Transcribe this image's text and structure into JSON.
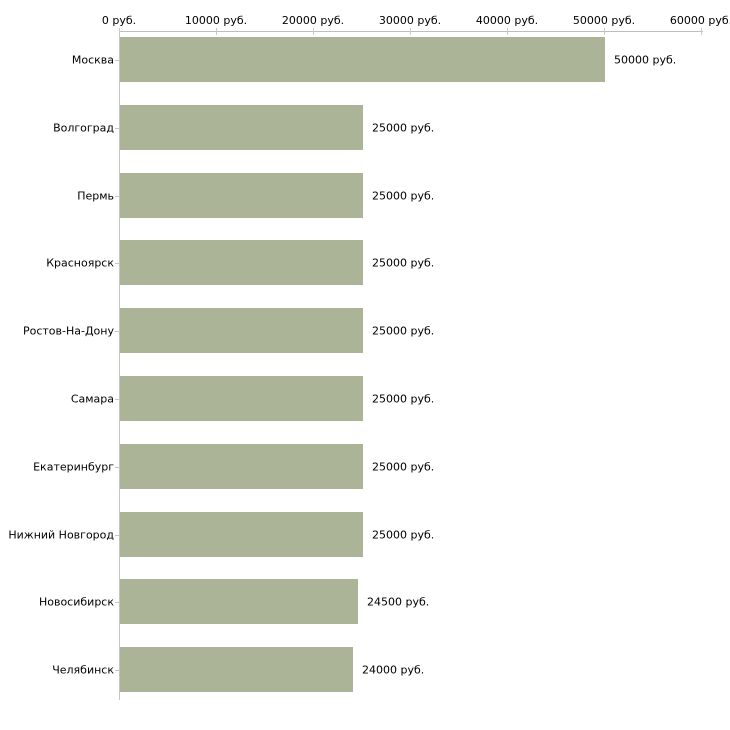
{
  "chart_data": {
    "type": "bar",
    "orientation": "horizontal",
    "title": "",
    "xlabel": "",
    "ylabel": "",
    "unit": "руб.",
    "xlim": [
      0,
      60000
    ],
    "grid": false,
    "legend": false,
    "categories": [
      "Москва",
      "Волгоград",
      "Пермь",
      "Красноярск",
      "Ростов-На-Дону",
      "Самара",
      "Екатеринбург",
      "Нижний Новгород",
      "Новосибирск",
      "Челябинск"
    ],
    "values": [
      50000,
      25000,
      25000,
      25000,
      25000,
      25000,
      25000,
      25000,
      24500,
      24000
    ],
    "value_labels": [
      "50000 руб.",
      "25000 руб.",
      "25000 руб.",
      "25000 руб.",
      "25000 руб.",
      "25000 руб.",
      "25000 руб.",
      "25000 руб.",
      "24500 руб.",
      "24000 руб."
    ],
    "x_ticks": [
      0,
      10000,
      20000,
      30000,
      40000,
      50000,
      60000
    ],
    "x_tick_labels": [
      "0 руб.",
      "10000 руб.",
      "20000 руб.",
      "30000 руб.",
      "40000 руб.",
      "50000 руб.",
      "60000 руб."
    ],
    "colors": {
      "bar": "#acb498",
      "axis": "#bfbfba",
      "x_tick": "#c9ccba",
      "y_tick": "#c6c6c0",
      "text": "#000000",
      "background": "#ffffff"
    }
  }
}
